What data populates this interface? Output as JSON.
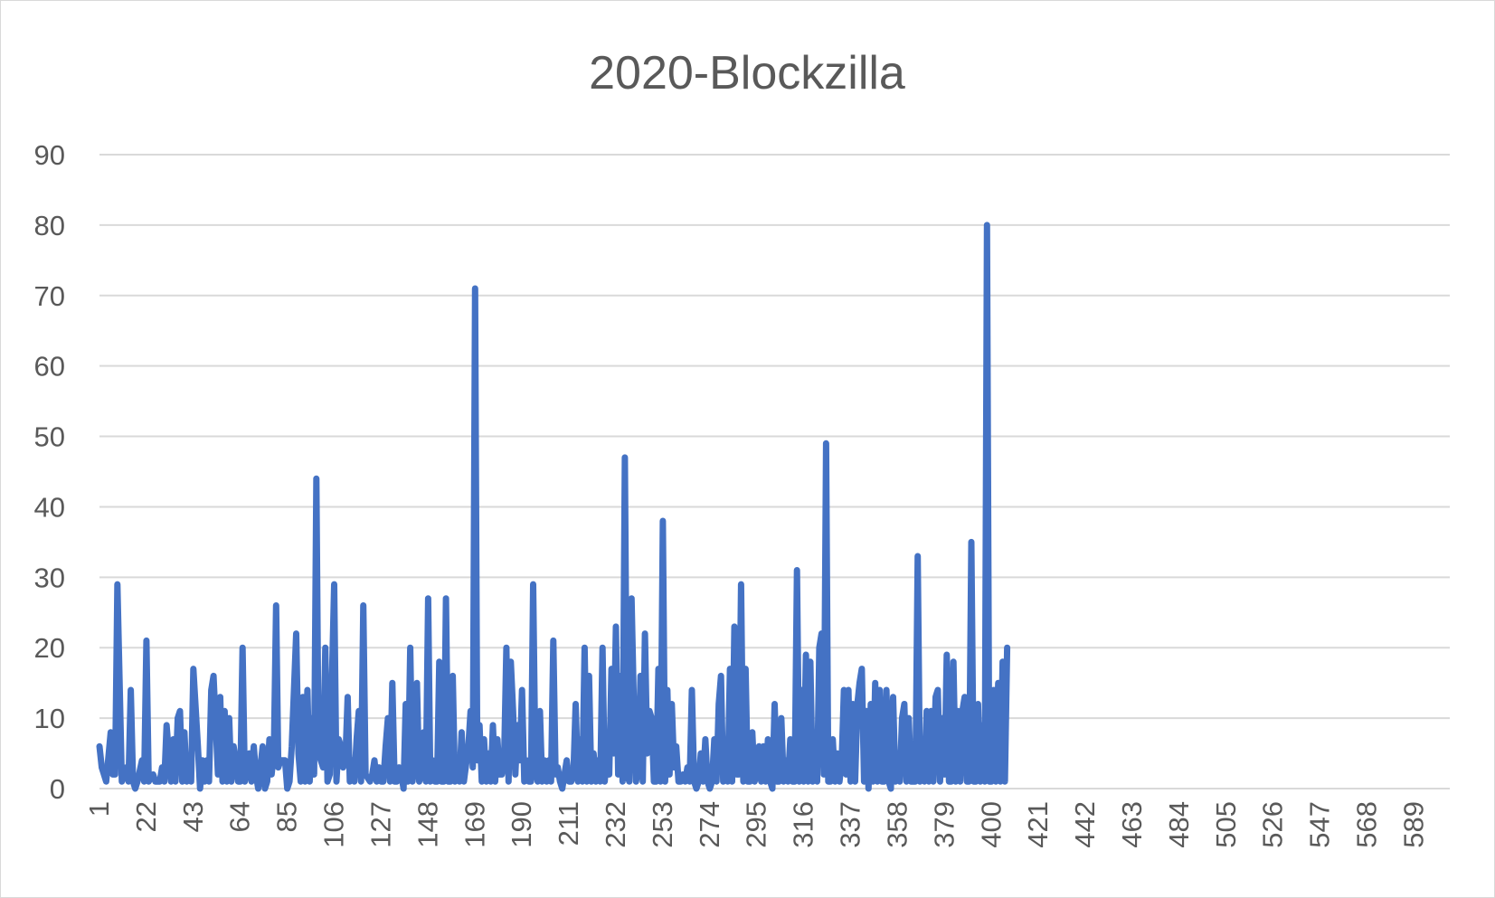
{
  "chart_data": {
    "type": "line",
    "title": "2020-Blockzilla",
    "xlabel": "",
    "ylabel": "",
    "ylim": [
      0,
      90
    ],
    "y_ticks": [
      "0",
      "10",
      "20",
      "30",
      "40",
      "50",
      "60",
      "70",
      "80",
      "90"
    ],
    "x_range": [
      1,
      605
    ],
    "x_tick_labels": [
      "1",
      "22",
      "43",
      "64",
      "85",
      "106",
      "127",
      "148",
      "169",
      "190",
      "211",
      "232",
      "253",
      "274",
      "295",
      "316",
      "337",
      "358",
      "379",
      "400",
      "421",
      "442",
      "463",
      "484",
      "505",
      "526",
      "547",
      "568",
      "589"
    ],
    "grid": true,
    "legend": "none",
    "series_color": "#4472c4",
    "keypoints": [
      [
        1,
        6
      ],
      [
        2,
        3
      ],
      [
        4,
        1
      ],
      [
        6,
        8
      ],
      [
        7,
        2
      ],
      [
        8,
        2
      ],
      [
        9,
        29
      ],
      [
        11,
        1
      ],
      [
        13,
        3
      ],
      [
        14,
        1
      ],
      [
        15,
        14
      ],
      [
        16,
        1
      ],
      [
        17,
        0
      ],
      [
        18,
        1
      ],
      [
        20,
        4
      ],
      [
        21,
        1
      ],
      [
        22,
        21
      ],
      [
        23,
        1
      ],
      [
        25,
        2
      ],
      [
        26,
        1
      ],
      [
        28,
        1
      ],
      [
        29,
        3
      ],
      [
        30,
        1
      ],
      [
        31,
        9
      ],
      [
        33,
        1
      ],
      [
        34,
        7
      ],
      [
        35,
        1
      ],
      [
        36,
        10
      ],
      [
        37,
        11
      ],
      [
        38,
        1
      ],
      [
        39,
        8
      ],
      [
        40,
        1
      ],
      [
        41,
        2
      ],
      [
        42,
        1
      ],
      [
        43,
        17
      ],
      [
        45,
        6
      ],
      [
        46,
        0
      ],
      [
        47,
        4
      ],
      [
        48,
        1
      ],
      [
        49,
        4
      ],
      [
        50,
        1
      ],
      [
        51,
        14
      ],
      [
        52,
        16
      ],
      [
        54,
        2
      ],
      [
        55,
        13
      ],
      [
        56,
        1
      ],
      [
        57,
        11
      ],
      [
        58,
        1
      ],
      [
        59,
        10
      ],
      [
        60,
        1
      ],
      [
        61,
        6
      ],
      [
        62,
        4
      ],
      [
        63,
        1
      ],
      [
        64,
        1
      ],
      [
        65,
        20
      ],
      [
        66,
        1
      ],
      [
        68,
        5
      ],
      [
        69,
        1
      ],
      [
        70,
        6
      ],
      [
        71,
        2
      ],
      [
        72,
        0
      ],
      [
        73,
        3
      ],
      [
        74,
        6
      ],
      [
        75,
        0
      ],
      [
        76,
        1
      ],
      [
        77,
        7
      ],
      [
        78,
        2
      ],
      [
        79,
        5
      ],
      [
        80,
        26
      ],
      [
        81,
        3
      ],
      [
        82,
        4
      ],
      [
        84,
        4
      ],
      [
        85,
        0
      ],
      [
        86,
        1
      ],
      [
        87,
        6
      ],
      [
        89,
        22
      ],
      [
        90,
        5
      ],
      [
        91,
        1
      ],
      [
        92,
        13
      ],
      [
        93,
        1
      ],
      [
        94,
        14
      ],
      [
        95,
        1
      ],
      [
        96,
        10
      ],
      [
        97,
        2
      ],
      [
        98,
        44
      ],
      [
        99,
        5
      ],
      [
        101,
        3
      ],
      [
        102,
        20
      ],
      [
        103,
        1
      ],
      [
        104,
        2
      ],
      [
        106,
        29
      ],
      [
        107,
        1
      ],
      [
        108,
        7
      ],
      [
        109,
        6
      ],
      [
        110,
        3
      ],
      [
        111,
        4
      ],
      [
        112,
        13
      ],
      [
        113,
        1
      ],
      [
        114,
        4
      ],
      [
        115,
        1
      ],
      [
        116,
        7
      ],
      [
        117,
        11
      ],
      [
        118,
        1
      ],
      [
        119,
        26
      ],
      [
        120,
        2
      ],
      [
        122,
        1
      ],
      [
        123,
        2
      ],
      [
        124,
        4
      ],
      [
        125,
        1
      ],
      [
        126,
        3
      ],
      [
        127,
        1
      ],
      [
        128,
        1
      ],
      [
        129,
        6
      ],
      [
        130,
        10
      ],
      [
        131,
        1
      ],
      [
        132,
        15
      ],
      [
        133,
        1
      ],
      [
        134,
        1
      ],
      [
        135,
        3
      ],
      [
        136,
        2
      ],
      [
        137,
        0
      ],
      [
        138,
        12
      ],
      [
        139,
        1
      ],
      [
        140,
        20
      ],
      [
        141,
        1
      ],
      [
        142,
        4
      ],
      [
        143,
        15
      ],
      [
        144,
        1
      ],
      [
        145,
        2
      ],
      [
        146,
        8
      ],
      [
        147,
        1
      ],
      [
        148,
        27
      ],
      [
        149,
        1
      ],
      [
        150,
        4
      ],
      [
        151,
        1
      ],
      [
        152,
        1
      ],
      [
        153,
        18
      ],
      [
        154,
        1
      ],
      [
        155,
        1
      ],
      [
        156,
        27
      ],
      [
        157,
        1
      ],
      [
        158,
        1
      ],
      [
        159,
        16
      ],
      [
        160,
        1
      ],
      [
        161,
        2
      ],
      [
        162,
        1
      ],
      [
        163,
        8
      ],
      [
        164,
        1
      ],
      [
        166,
        6
      ],
      [
        167,
        11
      ],
      [
        168,
        3
      ],
      [
        169,
        71
      ],
      [
        170,
        4
      ],
      [
        171,
        9
      ],
      [
        172,
        1
      ],
      [
        173,
        7
      ],
      [
        174,
        1
      ],
      [
        175,
        5
      ],
      [
        176,
        1
      ],
      [
        177,
        9
      ],
      [
        178,
        1
      ],
      [
        179,
        7
      ],
      [
        180,
        2
      ],
      [
        181,
        2
      ],
      [
        182,
        4
      ],
      [
        183,
        20
      ],
      [
        184,
        1
      ],
      [
        185,
        18
      ],
      [
        186,
        11
      ],
      [
        187,
        2
      ],
      [
        188,
        9
      ],
      [
        189,
        4
      ],
      [
        190,
        14
      ],
      [
        191,
        1
      ],
      [
        192,
        4
      ],
      [
        193,
        1
      ],
      [
        194,
        1
      ],
      [
        195,
        29
      ],
      [
        196,
        3
      ],
      [
        197,
        1
      ],
      [
        198,
        11
      ],
      [
        199,
        1
      ],
      [
        200,
        4
      ],
      [
        201,
        1
      ],
      [
        202,
        4
      ],
      [
        203,
        1
      ],
      [
        204,
        21
      ],
      [
        205,
        2
      ],
      [
        206,
        3
      ],
      [
        207,
        1
      ],
      [
        208,
        0
      ],
      [
        210,
        4
      ],
      [
        211,
        1
      ],
      [
        212,
        1
      ],
      [
        213,
        2
      ],
      [
        214,
        12
      ],
      [
        215,
        1
      ],
      [
        216,
        7
      ],
      [
        217,
        1
      ],
      [
        218,
        20
      ],
      [
        219,
        1
      ],
      [
        220,
        16
      ],
      [
        221,
        1
      ],
      [
        222,
        5
      ],
      [
        223,
        1
      ],
      [
        224,
        4
      ],
      [
        225,
        1
      ],
      [
        226,
        20
      ],
      [
        227,
        1
      ],
      [
        228,
        5
      ],
      [
        229,
        2
      ],
      [
        230,
        17
      ],
      [
        231,
        5
      ],
      [
        232,
        23
      ],
      [
        233,
        2
      ],
      [
        234,
        16
      ],
      [
        235,
        1
      ],
      [
        236,
        47
      ],
      [
        237,
        2
      ],
      [
        238,
        1
      ],
      [
        239,
        27
      ],
      [
        240,
        12
      ],
      [
        241,
        1
      ],
      [
        242,
        3
      ],
      [
        243,
        16
      ],
      [
        244,
        1
      ],
      [
        245,
        22
      ],
      [
        246,
        5
      ],
      [
        247,
        11
      ],
      [
        248,
        10
      ],
      [
        249,
        1
      ],
      [
        250,
        1
      ],
      [
        251,
        17
      ],
      [
        252,
        1
      ],
      [
        253,
        38
      ],
      [
        254,
        1
      ],
      [
        255,
        14
      ],
      [
        256,
        2
      ],
      [
        257,
        12
      ],
      [
        258,
        3
      ],
      [
        259,
        6
      ],
      [
        260,
        1
      ],
      [
        261,
        1
      ],
      [
        262,
        2
      ],
      [
        263,
        1
      ],
      [
        264,
        3
      ],
      [
        265,
        1
      ],
      [
        266,
        14
      ],
      [
        267,
        1
      ],
      [
        268,
        0
      ],
      [
        269,
        1
      ],
      [
        270,
        5
      ],
      [
        271,
        1
      ],
      [
        272,
        7
      ],
      [
        273,
        1
      ],
      [
        274,
        0
      ],
      [
        275,
        1
      ],
      [
        276,
        7
      ],
      [
        277,
        1
      ],
      [
        278,
        12
      ],
      [
        279,
        16
      ],
      [
        280,
        1
      ],
      [
        281,
        3
      ],
      [
        282,
        1
      ],
      [
        283,
        17
      ],
      [
        284,
        1
      ],
      [
        285,
        23
      ],
      [
        286,
        2
      ],
      [
        287,
        2
      ],
      [
        288,
        29
      ],
      [
        289,
        1
      ],
      [
        290,
        17
      ],
      [
        291,
        1
      ],
      [
        292,
        1
      ],
      [
        293,
        8
      ],
      [
        294,
        1
      ],
      [
        295,
        2
      ],
      [
        296,
        6
      ],
      [
        297,
        1
      ],
      [
        298,
        6
      ],
      [
        299,
        1
      ],
      [
        300,
        7
      ],
      [
        301,
        1
      ],
      [
        302,
        0
      ],
      [
        303,
        12
      ],
      [
        304,
        1
      ],
      [
        305,
        1
      ],
      [
        306,
        10
      ],
      [
        307,
        1
      ],
      [
        308,
        4
      ],
      [
        309,
        1
      ],
      [
        310,
        7
      ],
      [
        311,
        1
      ],
      [
        312,
        1
      ],
      [
        313,
        31
      ],
      [
        314,
        1
      ],
      [
        315,
        14
      ],
      [
        316,
        1
      ],
      [
        317,
        19
      ],
      [
        318,
        1
      ],
      [
        319,
        18
      ],
      [
        320,
        1
      ],
      [
        321,
        8
      ],
      [
        322,
        1
      ],
      [
        323,
        20
      ],
      [
        324,
        22
      ],
      [
        325,
        2
      ],
      [
        326,
        49
      ],
      [
        327,
        1
      ],
      [
        328,
        1
      ],
      [
        329,
        7
      ],
      [
        330,
        1
      ],
      [
        331,
        5
      ],
      [
        332,
        1
      ],
      [
        333,
        4
      ],
      [
        334,
        14
      ],
      [
        335,
        2
      ],
      [
        336,
        14
      ],
      [
        337,
        1
      ],
      [
        338,
        12
      ],
      [
        339,
        1
      ],
      [
        340,
        12
      ],
      [
        341,
        15
      ],
      [
        342,
        17
      ],
      [
        343,
        1
      ],
      [
        344,
        11
      ],
      [
        345,
        0
      ],
      [
        346,
        12
      ],
      [
        347,
        1
      ],
      [
        348,
        15
      ],
      [
        349,
        1
      ],
      [
        350,
        14
      ],
      [
        351,
        1
      ],
      [
        352,
        1
      ],
      [
        353,
        14
      ],
      [
        354,
        1
      ],
      [
        355,
        0
      ],
      [
        356,
        13
      ],
      [
        357,
        1
      ],
      [
        358,
        5
      ],
      [
        359,
        1
      ],
      [
        360,
        10
      ],
      [
        361,
        12
      ],
      [
        362,
        1
      ],
      [
        363,
        10
      ],
      [
        364,
        1
      ],
      [
        365,
        1
      ],
      [
        366,
        1
      ],
      [
        367,
        33
      ],
      [
        368,
        1
      ],
      [
        369,
        7
      ],
      [
        370,
        1
      ],
      [
        371,
        11
      ],
      [
        372,
        1
      ],
      [
        373,
        11
      ],
      [
        374,
        1
      ],
      [
        375,
        13
      ],
      [
        376,
        14
      ],
      [
        377,
        1
      ],
      [
        378,
        10
      ],
      [
        379,
        2
      ],
      [
        380,
        19
      ],
      [
        381,
        1
      ],
      [
        382,
        1
      ],
      [
        383,
        18
      ],
      [
        384,
        1
      ],
      [
        385,
        11
      ],
      [
        386,
        1
      ],
      [
        387,
        11
      ],
      [
        388,
        13
      ],
      [
        389,
        1
      ],
      [
        390,
        1
      ],
      [
        391,
        35
      ],
      [
        392,
        1
      ],
      [
        393,
        1
      ],
      [
        394,
        12
      ],
      [
        395,
        1
      ],
      [
        396,
        9
      ],
      [
        397,
        1
      ],
      [
        398,
        80
      ],
      [
        399,
        1
      ],
      [
        400,
        1
      ],
      [
        401,
        14
      ],
      [
        402,
        1
      ],
      [
        403,
        15
      ],
      [
        404,
        1
      ],
      [
        405,
        18
      ],
      [
        406,
        1
      ],
      [
        407,
        20
      ]
    ]
  }
}
